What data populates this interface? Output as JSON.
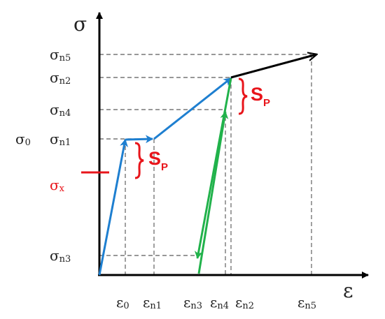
{
  "axes": {
    "y_title": "σ",
    "x_title": "ε"
  },
  "y_labels": {
    "sn5": {
      "base": "σ",
      "sub": "n5"
    },
    "sn2": {
      "base": "σ",
      "sub": "n2"
    },
    "sn4": {
      "base": "σ",
      "sub": "n4"
    },
    "sn1": {
      "base": "σ",
      "sub": "n1"
    },
    "s0": {
      "base": "σ",
      "sub": "0"
    },
    "sx": {
      "base": "σ",
      "sub": "x"
    },
    "sn3": {
      "base": "σ",
      "sub": "n3"
    }
  },
  "x_labels": {
    "e0": {
      "base": "ε",
      "sub": "0"
    },
    "en1": {
      "base": "ε",
      "sub": "n1"
    },
    "en3": {
      "base": "ε",
      "sub": "n3"
    },
    "en4": {
      "base": "ε",
      "sub": "n4"
    },
    "en2": {
      "base": "ε",
      "sub": "n2"
    },
    "en5": {
      "base": "ε",
      "sub": "n5"
    }
  },
  "sp_label": {
    "base": "S",
    "sub": "P"
  },
  "colors": {
    "axis": "#000000",
    "loading_path": "#1e7fd0",
    "unload_reload": "#21b24b",
    "continuation": "#000000",
    "annotation": "#e8151b",
    "guide": "#777777"
  }
}
